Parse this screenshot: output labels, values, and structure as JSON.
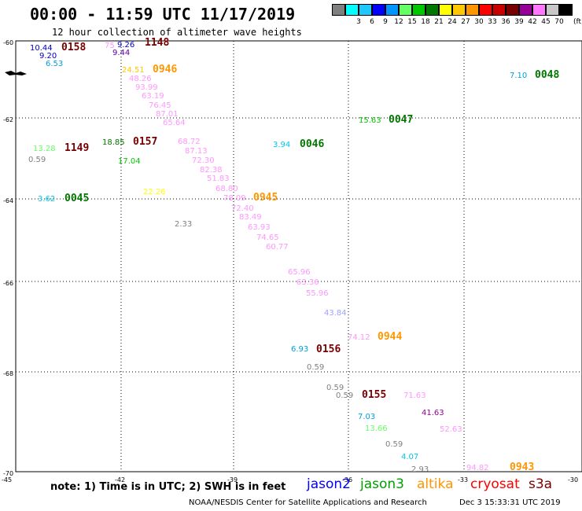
{
  "title": "00:00 - 11:59 UTC 11/17/2019",
  "subtitle": "12 hour collection of altimeter wave heights",
  "legend": {
    "swatches": [
      {
        "color": "#808080",
        "label": ""
      },
      {
        "color": "#00ffff",
        "label": "3"
      },
      {
        "color": "#1ec8ff",
        "label": "6"
      },
      {
        "color": "#0000ff",
        "label": "9"
      },
      {
        "color": "#0096ff",
        "label": "12"
      },
      {
        "color": "#64ff64",
        "label": "15"
      },
      {
        "color": "#00c800",
        "label": "18"
      },
      {
        "color": "#007800",
        "label": "21"
      },
      {
        "color": "#ffff00",
        "label": "24"
      },
      {
        "color": "#ffc800",
        "label": "27"
      },
      {
        "color": "#ff9600",
        "label": "30"
      },
      {
        "color": "#ff0000",
        "label": "33"
      },
      {
        "color": "#c80000",
        "label": "36"
      },
      {
        "color": "#780000",
        "label": "39"
      },
      {
        "color": "#960096",
        "label": "42"
      },
      {
        "color": "#ff78ff",
        "label": "45"
      },
      {
        "color": "#c8c8c8",
        "label": "70"
      },
      {
        "color": "#000000",
        "label": ""
      }
    ],
    "unit": "(ft)"
  },
  "axes": {
    "lat_labels": [
      "-60",
      "-62",
      "-64",
      "-66",
      "-68",
      "-70"
    ],
    "lon_labels": [
      "-45",
      "-42",
      "-39",
      "-36",
      "-33",
      "-30"
    ]
  },
  "wave_labels": [
    {
      "text": "10.44",
      "color": "#0000c8"
    },
    {
      "text": "9.20",
      "color": "#0000c8"
    },
    {
      "text": "6.53",
      "color": "#00a0dc"
    },
    {
      "text": "0158",
      "color": "#780000"
    },
    {
      "text": "75",
      "color": "#ff96ff"
    },
    {
      "text": "9.26",
      "color": "#0000c8"
    },
    {
      "text": "9.44",
      "color": "#6000a0"
    },
    {
      "text": "1148",
      "color": "#780000"
    },
    {
      "text": "24.51",
      "color": "#ffc800"
    },
    {
      "text": "0946",
      "color": "#ff9600"
    },
    {
      "text": "48.26",
      "color": "#ff96ff"
    },
    {
      "text": "93.99",
      "color": "#ff96ff"
    },
    {
      "text": "63.19",
      "color": "#ff96ff"
    },
    {
      "text": "76.45",
      "color": "#ff96ff"
    },
    {
      "text": "87.01",
      "color": "#ff96ff"
    },
    {
      "text": "65.64",
      "color": "#ff96ff"
    },
    {
      "text": "7.10",
      "color": "#00a0dc"
    },
    {
      "text": "0048",
      "color": "#007800"
    },
    {
      "text": "15.63",
      "color": "#00c800"
    },
    {
      "text": "0047",
      "color": "#007800"
    },
    {
      "text": "13.28",
      "color": "#64ff64"
    },
    {
      "text": "1149",
      "color": "#780000"
    },
    {
      "text": "0.59",
      "color": "#808080"
    },
    {
      "text": "18.85",
      "color": "#007800"
    },
    {
      "text": "0157",
      "color": "#780000"
    },
    {
      "text": "17.04",
      "color": "#00c800"
    },
    {
      "text": "68.72",
      "color": "#ff96ff"
    },
    {
      "text": "87.13",
      "color": "#ff96ff"
    },
    {
      "text": "72.30",
      "color": "#ff96ff"
    },
    {
      "text": "82.38",
      "color": "#ff96ff"
    },
    {
      "text": "51.83",
      "color": "#ff96ff"
    },
    {
      "text": "68.80",
      "color": "#ff96ff"
    },
    {
      "text": "78.09",
      "color": "#ff96ff"
    },
    {
      "text": "0945",
      "color": "#ff9600"
    },
    {
      "text": "72.40",
      "color": "#ff96ff"
    },
    {
      "text": "83.49",
      "color": "#ff96ff"
    },
    {
      "text": "63.93",
      "color": "#ff96ff"
    },
    {
      "text": "74.65",
      "color": "#ff96ff"
    },
    {
      "text": "60.77",
      "color": "#ff96ff"
    },
    {
      "text": "3.94",
      "color": "#00c8e6"
    },
    {
      "text": "0046",
      "color": "#007800"
    },
    {
      "text": "3.62",
      "color": "#00c8e6"
    },
    {
      "text": "0045",
      "color": "#007800"
    },
    {
      "text": "22.26",
      "color": "#ffff00"
    },
    {
      "text": "2.33",
      "color": "#808080"
    },
    {
      "text": "65.96",
      "color": "#ff96ff"
    },
    {
      "text": "63.36",
      "color": "#ff96ff"
    },
    {
      "text": "55.96",
      "color": "#ff96ff"
    },
    {
      "text": "43.84",
      "color": "#a0a0ff"
    },
    {
      "text": "74.12",
      "color": "#ff96ff"
    },
    {
      "text": "0944",
      "color": "#ff9600"
    },
    {
      "text": "6.93",
      "color": "#00a0dc"
    },
    {
      "text": "0156",
      "color": "#780000"
    },
    {
      "text": "0.59",
      "color": "#808080"
    },
    {
      "text": "0.59",
      "color": "#808080"
    },
    {
      "text": "0.59",
      "color": "#808080"
    },
    {
      "text": "0155",
      "color": "#780000"
    },
    {
      "text": "71.63",
      "color": "#ff96ff"
    },
    {
      "text": "7.03",
      "color": "#00a0dc"
    },
    {
      "text": "41.63",
      "color": "#960096"
    },
    {
      "text": "13.66",
      "color": "#64ff64"
    },
    {
      "text": "52.63",
      "color": "#ff96ff"
    },
    {
      "text": "0.59",
      "color": "#808080"
    },
    {
      "text": "4.07",
      "color": "#00c8e6"
    },
    {
      "text": "2.93",
      "color": "#808080"
    },
    {
      "text": "94.82",
      "color": "#ff96ff"
    },
    {
      "text": "0943",
      "color": "#ff9600"
    }
  ],
  "note": "note: 1) Time is in UTC; 2) SWH is in feet",
  "missions": [
    {
      "text": "jason2",
      "color": "#0000ff"
    },
    {
      "text": "jason3",
      "color": "#00a000"
    },
    {
      "text": "altika",
      "color": "#ff9600"
    },
    {
      "text": "cryosat",
      "color": "#ff0000"
    },
    {
      "text": "s3a",
      "color": "#780000"
    }
  ],
  "credit": "NOAA/NESDIS Center for Satellite Applications and Research",
  "timestamp": "Dec  3 15:33:31 UTC 2019"
}
